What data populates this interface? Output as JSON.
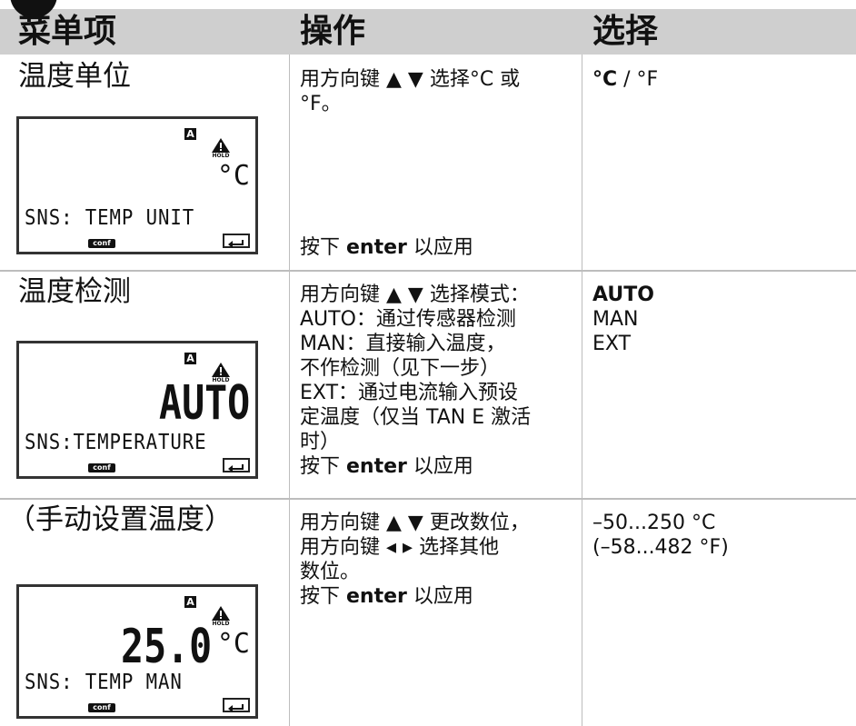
{
  "header": {
    "columns": [
      "菜单项",
      "操作",
      "选择"
    ]
  },
  "rows": [
    {
      "item": "温度单位",
      "display": {
        "indicator": "A",
        "hold": "HOLD",
        "unit": "°C",
        "message": "SNS: TEMP UNIT",
        "mode": "conf"
      },
      "action": [
        [
          {
            "text": "用方向键 ▲ ▼ 选择°C 或"
          }
        ],
        [
          {
            "text": "°F。"
          }
        ]
      ],
      "confirm": [
        {
          "text": "按下 "
        },
        {
          "text": "enter",
          "bold": true
        },
        {
          "text": " 以应用"
        }
      ],
      "choices": [
        [
          {
            "text": "°C",
            "bold": true
          },
          {
            "text": " / °F"
          }
        ]
      ]
    },
    {
      "item": "温度检测",
      "display": {
        "indicator": "A",
        "hold": "HOLD",
        "value": "AUTO",
        "message": "SNS:TEMPERATURE",
        "mode": "conf"
      },
      "action": [
        [
          {
            "text": "用方向键 ▲ ▼ 选择模式："
          }
        ],
        [
          {
            "text": "AUTO：通过传感器检测"
          }
        ],
        [
          {
            "text": "MAN：直接输入温度，"
          }
        ],
        [
          {
            "text": "不作检测（见下一步）"
          }
        ],
        [
          {
            "text": "EXT：通过电流输入预设"
          }
        ],
        [
          {
            "text": "定温度（仅当 TAN E 激活"
          }
        ],
        [
          {
            "text": "时）"
          }
        ],
        [
          {
            "text": "按下 "
          },
          {
            "text": "enter",
            "bold": true
          },
          {
            "text": " 以应用"
          }
        ]
      ],
      "choices": [
        [
          {
            "text": "AUTO",
            "bold": true
          }
        ],
        [
          {
            "text": "MAN"
          }
        ],
        [
          {
            "text": "EXT"
          }
        ]
      ]
    },
    {
      "item": "（手动设置温度）",
      "display": {
        "indicator": "A",
        "hold": "HOLD",
        "value": "25.0",
        "unit": "°C",
        "message": "SNS: TEMP MAN",
        "mode": "conf"
      },
      "action": [
        [
          {
            "text": "用方向键 ▲ ▼ 更改数位，"
          }
        ],
        [
          {
            "text": "用方向键 ◂ ▸ 选择其他"
          }
        ],
        [
          {
            "text": "数位。"
          }
        ],
        [
          {
            "text": "按下 "
          },
          {
            "text": "enter",
            "bold": true
          },
          {
            "text": " 以应用"
          }
        ]
      ],
      "choices": [
        [
          {
            "text": "–50...250 °C"
          }
        ],
        [
          {
            "text": "(–58...482 °F)"
          }
        ]
      ]
    }
  ]
}
